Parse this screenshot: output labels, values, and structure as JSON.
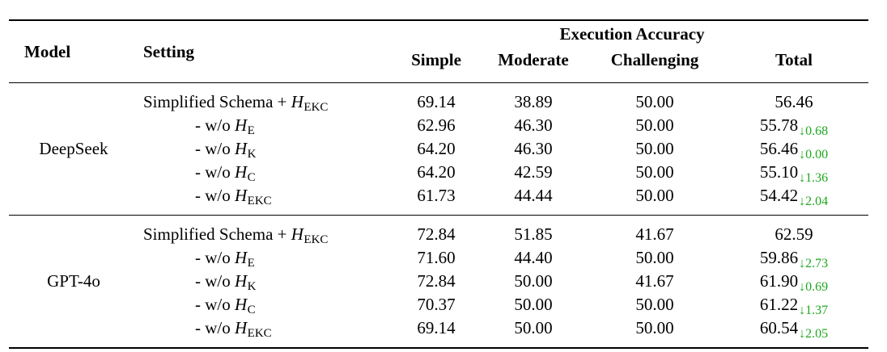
{
  "table": {
    "columns": {
      "model": "Model",
      "setting": "Setting"
    },
    "group_header": "Execution Accuracy",
    "subheaders": [
      "Simple",
      "Moderate",
      "Challenging",
      "Total"
    ],
    "down_arrow": "↓",
    "colors": {
      "delta_green": "#1fa71f",
      "text": "#000000",
      "rule": "#000000",
      "background": "#ffffff"
    },
    "groups": [
      {
        "model": "DeepSeek",
        "rows": [
          {
            "setting_prefix": "Simplified Schema + ",
            "setting_var": "H",
            "setting_sub": "EKC",
            "indent": false,
            "simple": "69.14",
            "moderate": "38.89",
            "challenging": "50.00",
            "total": "56.46",
            "delta": ""
          },
          {
            "setting_prefix": "- w/o ",
            "setting_var": "H",
            "setting_sub": "E",
            "indent": true,
            "simple": "62.96",
            "moderate": "46.30",
            "challenging": "50.00",
            "total": "55.78",
            "delta": "0.68"
          },
          {
            "setting_prefix": "- w/o ",
            "setting_var": "H",
            "setting_sub": "K",
            "indent": true,
            "simple": "64.20",
            "moderate": "46.30",
            "challenging": "50.00",
            "total": "56.46",
            "delta": "0.00"
          },
          {
            "setting_prefix": "- w/o ",
            "setting_var": "H",
            "setting_sub": "C",
            "indent": true,
            "simple": "64.20",
            "moderate": "42.59",
            "challenging": "50.00",
            "total": "55.10",
            "delta": "1.36"
          },
          {
            "setting_prefix": "- w/o ",
            "setting_var": "H",
            "setting_sub": "EKC",
            "indent": true,
            "simple": "61.73",
            "moderate": "44.44",
            "challenging": "50.00",
            "total": "54.42",
            "delta": "2.04"
          }
        ]
      },
      {
        "model": "GPT-4o",
        "rows": [
          {
            "setting_prefix": "Simplified Schema + ",
            "setting_var": "H",
            "setting_sub": "EKC",
            "indent": false,
            "simple": "72.84",
            "moderate": "51.85",
            "challenging": "41.67",
            "total": "62.59",
            "delta": ""
          },
          {
            "setting_prefix": "- w/o ",
            "setting_var": "H",
            "setting_sub": "E",
            "indent": true,
            "simple": "71.60",
            "moderate": "44.40",
            "challenging": "50.00",
            "total": "59.86",
            "delta": "2.73"
          },
          {
            "setting_prefix": "- w/o ",
            "setting_var": "H",
            "setting_sub": "K",
            "indent": true,
            "simple": "72.84",
            "moderate": "50.00",
            "challenging": "41.67",
            "total": "61.90",
            "delta": "0.69"
          },
          {
            "setting_prefix": "- w/o ",
            "setting_var": "H",
            "setting_sub": "C",
            "indent": true,
            "simple": "70.37",
            "moderate": "50.00",
            "challenging": "50.00",
            "total": "61.22",
            "delta": "1.37"
          },
          {
            "setting_prefix": "- w/o ",
            "setting_var": "H",
            "setting_sub": "EKC",
            "indent": true,
            "simple": "69.14",
            "moderate": "50.00",
            "challenging": "50.00",
            "total": "60.54",
            "delta": "2.05"
          }
        ]
      }
    ]
  }
}
